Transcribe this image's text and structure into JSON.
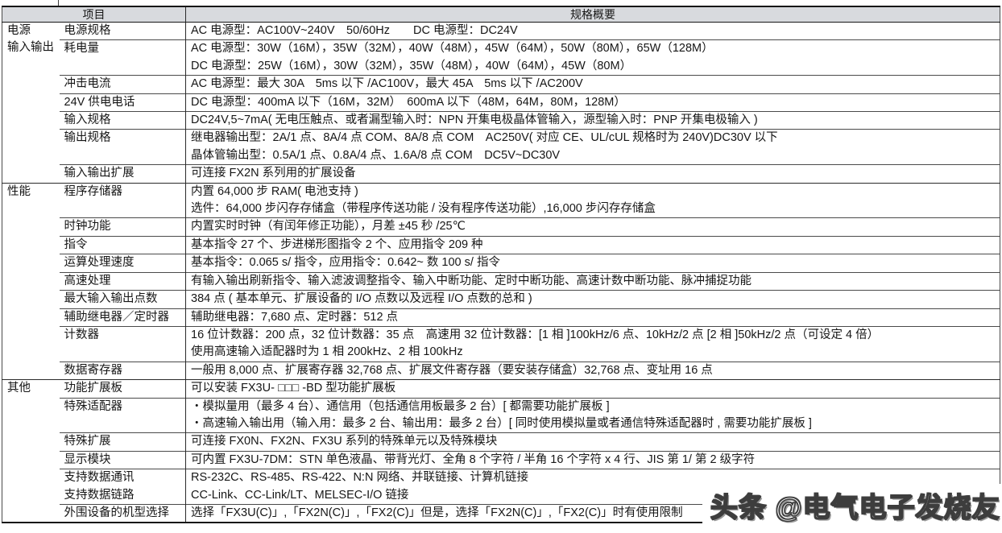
{
  "header": {
    "item_col": "项目",
    "spec_col": "规格概要"
  },
  "sections": [
    {
      "category": "电源\n输入输出",
      "rows": [
        {
          "item": "电源规格",
          "lines": [
            "AC 电源型：AC100V~240V　50/60Hz　　DC 电源型：DC24V"
          ]
        },
        {
          "item": "耗电量",
          "lines": [
            "AC 电源型：30W（16M），35W（32M），40W（48M），45W（64M），50W（80M），65W（128M）",
            "DC 电源型：25W（16M），30W（32M），35W（48M），40W（64M），45W（80M）"
          ]
        },
        {
          "item": "冲击电流",
          "lines": [
            "AC 电源型：最大 30A　5ms 以下 /AC100V，最大 45A　5ms 以下 /AC200V"
          ]
        },
        {
          "item": "24V 供电电话",
          "lines": [
            "DC 电源型：400mA 以下（16M，32M）　600mA 以下（48M，64M，80M，128M）"
          ]
        },
        {
          "item": "输入规格",
          "lines": [
            "DC24V,5~7mA( 无电压触点、或者漏型输入时：NPN 开集电极晶体管输入，源型输入时：PNP 开集电极输入 )"
          ]
        },
        {
          "item": "输出规格",
          "lines": [
            "继电器输出型：2A/1 点、8A/4 点 COM、8A/8 点 COM　AC250V( 对应 CE、UL/cUL 规格时为 240V)DC30V 以下",
            "晶体管输出型：0.5A/1 点、0.8A/4 点、1.6A/8 点 COM　DC5V~DC30V"
          ]
        },
        {
          "item": "输入输出扩展",
          "lines": [
            "可连接 FX2N 系列用的扩展设备"
          ]
        }
      ]
    },
    {
      "category": "性能",
      "rows": [
        {
          "item": "程序存储器",
          "lines": [
            "内置 64,000 步 RAM( 电池支持 )",
            "选件：64,000 步闪存存储盒（带程序传送功能 / 没有程序传送功能）,16,000 步闪存存储盒"
          ]
        },
        {
          "item": "时钟功能",
          "lines": [
            "内置实时时钟（有闰年修正功能），月差 ±45 秒 /25℃"
          ]
        },
        {
          "item": "指令",
          "lines": [
            "基本指令 27 个、步进梯形图指令 2 个、应用指令 209 种"
          ]
        },
        {
          "item": "运算处理速度",
          "lines": [
            "基本指令：0.065 s/ 指令，应用指令：0.642~ 数 100 s/ 指令"
          ]
        },
        {
          "item": "高速处理",
          "lines": [
            "有输入输出刷新指令、输入滤波调整指令、输入中断功能、定时中断功能、高速计数中断功能、脉冲捕捉功能"
          ]
        },
        {
          "item": "最大输入输出点数",
          "lines": [
            "384 点 ( 基本单元、扩展设备的 I/O 点数以及远程 I/O 点数的总和 )"
          ]
        },
        {
          "item": "辅助继电器／定时器",
          "lines": [
            "辅助继电器：7,680 点、定时器：512 点"
          ]
        },
        {
          "item": "计数器",
          "lines": [
            "16 位计数器：200 点，32 位计数器：35 点　高速用 32 位计数器：[1 相 ]100kHz/6 点、10kHz/2 点 [2 相 ]50kHz/2 点（可设定 4 倍）",
            "使用高速输入适配器时为 1 相 200kHz、2 相 100kHz"
          ]
        },
        {
          "item": "数据寄存器",
          "lines": [
            "一般用 8,000 点、扩展寄存器 32,768 点、扩展文件寄存器（要安装存储盒）32,768 点、变址用 16 点"
          ]
        }
      ]
    },
    {
      "category": "其他",
      "rows": [
        {
          "item": "功能扩展板",
          "lines": [
            "可以安装 FX3U- □□□ -BD 型功能扩展板"
          ]
        },
        {
          "item": "特殊适配器",
          "lines": [
            "・模拟量用（最多 4 台）、通信用（包括通信用板最多 2 台）[ 都需要功能扩展板 ]",
            "・高速输入输出用（输入用：最多 2 台、输出用：最多 2 台）[ 同时使用模拟量或者通信特殊适配器时 , 需要功能扩展板 ]"
          ]
        },
        {
          "item": "特殊扩展",
          "lines": [
            "可连接 FX0N、FX2N、FX3U 系列的特殊单元以及特殊模块"
          ]
        },
        {
          "item": "显示模块",
          "lines": [
            "可内置 FX3U-7DM：STN 单色液晶、带背光灯、全角 8 个字符 / 半角 16 个字符 x 4 行、JIS 第 1/ 第 2 级字符"
          ]
        },
        {
          "item": "支持数据通讯\n支持数据链路",
          "lines": [
            "RS-232C、RS-485、RS-422、N:N 网络、并联链接、计算机链接",
            "CC-Link、CC-Link/LT、MELSEC-I/O 链接"
          ]
        },
        {
          "item": "外围设备的机型选择",
          "lines": [
            "选择「FX3U(C)」,「FX2N(C)」,「FX2(C)」但是，选择「FX2N(C)」,「FX2(C)」时有使用限制"
          ]
        }
      ]
    }
  ],
  "watermark": "头条 @电气电子发烧友",
  "colors": {
    "header_bg": "#d8dade",
    "border_dark": "#161616",
    "border_mid": "#2a2a2a",
    "border_light": "#4a4a4a",
    "text": "#161616",
    "watermark_outline": "#3d3d3d"
  }
}
